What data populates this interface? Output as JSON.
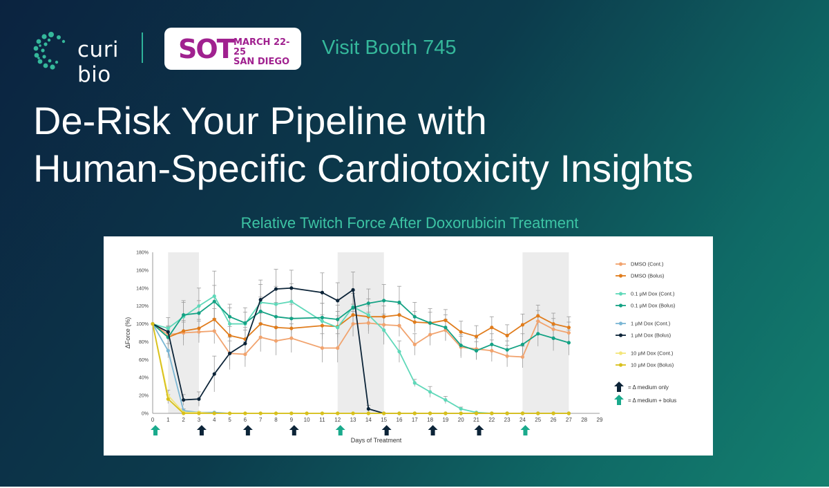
{
  "brand": {
    "logo_text": "curi bio",
    "event_mark": "SOT",
    "event_dates_line1": "MARCH 22-25",
    "event_dates_line2": "SAN DIEGO",
    "booth_text": "Visit Booth 745"
  },
  "headline": {
    "line1": "De-Risk Your Pipeline with",
    "line2": "Human-Specific Cardiotoxicity Insights"
  },
  "colors": {
    "brand_green": "#35b89b",
    "event_magenta": "#a0218f",
    "arrow_dark": "#0c2438",
    "arrow_teal": "#1aaa8c",
    "shade": "#ececec"
  },
  "chart_data": {
    "type": "line",
    "title": "Relative Twitch Force After Doxorubicin Treatment",
    "xlabel": "Days of Treatment",
    "ylabel": "ΔForce (%)",
    "xlim": [
      0,
      29
    ],
    "ylim": [
      0,
      180
    ],
    "x_ticks": [
      0,
      1,
      2,
      3,
      4,
      5,
      6,
      7,
      8,
      9,
      10,
      11,
      12,
      13,
      14,
      15,
      16,
      17,
      18,
      19,
      20,
      21,
      22,
      23,
      24,
      25,
      26,
      27,
      28,
      29
    ],
    "y_ticks": [
      "0%",
      "20%",
      "40%",
      "60%",
      "80%",
      "100%",
      "120%",
      "140%",
      "160%",
      "180%"
    ],
    "grid": false,
    "legend_position": "right",
    "shaded_day_ranges": [
      [
        1,
        3
      ],
      [
        12,
        15
      ],
      [
        24,
        27
      ]
    ],
    "series": [
      {
        "name": "DMSO (Cont.)",
        "color": "#f1a36e",
        "x": [
          0,
          1,
          2,
          3,
          4,
          5,
          6,
          7,
          8,
          9,
          11,
          12,
          13,
          14,
          15,
          16,
          17,
          18,
          19,
          20,
          21,
          22,
          23,
          24,
          25,
          26,
          27
        ],
        "y": [
          100,
          88,
          90,
          91,
          92,
          67,
          66,
          85,
          81,
          84,
          73,
          73,
          100,
          101,
          99,
          98,
          77,
          88,
          93,
          74,
          72,
          70,
          64,
          63,
          103,
          94,
          90
        ],
        "err": [
          0,
          10,
          14,
          12,
          14,
          14,
          14,
          16,
          16,
          16,
          16,
          16,
          14,
          12,
          12,
          12,
          12,
          12,
          12,
          12,
          12,
          12,
          12,
          12,
          12,
          12,
          12
        ]
      },
      {
        "name": "DMSO (Bolus)",
        "color": "#e07c1c",
        "x": [
          0,
          1,
          2,
          3,
          4,
          5,
          6,
          7,
          8,
          9,
          11,
          12,
          13,
          14,
          15,
          16,
          17,
          18,
          19,
          20,
          21,
          22,
          23,
          24,
          25,
          26,
          27
        ],
        "y": [
          100,
          85,
          92,
          95,
          105,
          87,
          83,
          100,
          96,
          95,
          98,
          97,
          110,
          108,
          108,
          110,
          102,
          101,
          104,
          91,
          86,
          96,
          87,
          99,
          109,
          100,
          96
        ],
        "err": [
          0,
          8,
          10,
          10,
          12,
          10,
          10,
          12,
          12,
          12,
          12,
          12,
          12,
          12,
          12,
          12,
          12,
          12,
          12,
          12,
          12,
          12,
          12,
          12,
          12,
          12,
          12
        ]
      },
      {
        "name": "0.1 µM Dox (Cont.)",
        "color": "#5fd8b9",
        "x": [
          0,
          1,
          2,
          3,
          4,
          5,
          6,
          7,
          8,
          9,
          11,
          12,
          13,
          14,
          15,
          16,
          17,
          18,
          19,
          20,
          21,
          22,
          23,
          24
        ],
        "y": [
          100,
          95,
          108,
          120,
          131,
          100,
          100,
          124,
          122,
          125,
          103,
          96,
          119,
          110,
          93,
          69,
          34,
          24,
          15,
          5,
          1,
          0,
          0,
          0
        ],
        "err": [
          0,
          12,
          18,
          20,
          28,
          18,
          18,
          20,
          20,
          20,
          20,
          18,
          18,
          18,
          16,
          12,
          4,
          6,
          4,
          2,
          0,
          0,
          0,
          0
        ]
      },
      {
        "name": "0.1 µM Dox (Bolus)",
        "color": "#14a284",
        "x": [
          0,
          1,
          2,
          3,
          4,
          5,
          6,
          7,
          8,
          9,
          11,
          12,
          13,
          14,
          15,
          16,
          17,
          18,
          19,
          20,
          21,
          22,
          23,
          24,
          25,
          26,
          27
        ],
        "y": [
          100,
          85,
          110,
          112,
          125,
          108,
          101,
          114,
          108,
          106,
          107,
          105,
          118,
          123,
          126,
          124,
          108,
          101,
          96,
          76,
          70,
          77,
          71,
          77,
          89,
          84,
          79
        ],
        "err": [
          0,
          10,
          14,
          14,
          18,
          14,
          12,
          16,
          16,
          16,
          16,
          16,
          16,
          16,
          18,
          18,
          16,
          16,
          14,
          12,
          10,
          12,
          10,
          12,
          14,
          14,
          14
        ]
      },
      {
        "name": "1 µM Dox (Cont.)",
        "color": "#7ab6d4",
        "x": [
          0,
          1,
          2,
          3,
          4,
          5,
          6,
          7,
          8,
          9,
          10,
          11,
          12,
          13,
          14,
          15,
          16,
          17,
          18,
          19,
          20,
          21,
          22,
          23,
          24,
          25,
          26,
          27
        ],
        "y": [
          100,
          70,
          3,
          1,
          1,
          0,
          0,
          0,
          0,
          0,
          0,
          0,
          0,
          0,
          0,
          0,
          0,
          0,
          0,
          0,
          0,
          0,
          0,
          0,
          0,
          0,
          0,
          0
        ],
        "err": [
          0,
          8,
          2,
          1,
          0,
          0,
          0,
          0,
          0,
          0,
          0,
          0,
          0,
          0,
          0,
          0,
          0,
          0,
          0,
          0,
          0,
          0,
          0,
          0,
          0,
          0,
          0,
          0
        ]
      },
      {
        "name": "1 µM Dox (Bolus)",
        "color": "#0c2438",
        "x": [
          0,
          1,
          2,
          3,
          4,
          5,
          6,
          7,
          8,
          9,
          11,
          12,
          13,
          14,
          15,
          16,
          17,
          18,
          19,
          20,
          21,
          22,
          23,
          24,
          25,
          26,
          27
        ],
        "y": [
          100,
          91,
          15,
          16,
          44,
          67,
          78,
          127,
          139,
          140,
          135,
          126,
          138,
          5,
          0,
          0,
          0,
          0,
          0,
          0,
          0,
          0,
          0,
          0,
          0,
          0,
          0
        ],
        "err": [
          0,
          6,
          6,
          8,
          20,
          18,
          18,
          22,
          22,
          20,
          22,
          20,
          20,
          4,
          0,
          0,
          0,
          0,
          0,
          0,
          0,
          0,
          0,
          0,
          0,
          0,
          0
        ]
      },
      {
        "name": "10 µM Dox (Cont.)",
        "color": "#f3e67a",
        "x": [
          0,
          1,
          2,
          3,
          4,
          5,
          6,
          7,
          8,
          9,
          10,
          11,
          12,
          13,
          14,
          15,
          16,
          17,
          18,
          19,
          20,
          21,
          22,
          23,
          24,
          25,
          26,
          27
        ],
        "y": [
          100,
          20,
          1,
          1,
          0,
          0,
          0,
          0,
          0,
          0,
          0,
          0,
          0,
          0,
          0,
          0,
          0,
          0,
          0,
          0,
          0,
          0,
          0,
          0,
          0,
          0,
          0,
          0
        ],
        "err": [
          0,
          6,
          0,
          0,
          0,
          0,
          0,
          0,
          0,
          0,
          0,
          0,
          0,
          0,
          0,
          0,
          0,
          0,
          0,
          0,
          0,
          0,
          0,
          0,
          0,
          0,
          0,
          0
        ]
      },
      {
        "name": "10 µM Dox (Bolus)",
        "color": "#d8c01b",
        "x": [
          0,
          1,
          2,
          3,
          4,
          5,
          6,
          7,
          8,
          9,
          10,
          11,
          12,
          13,
          14,
          15,
          16,
          17,
          18,
          19,
          20,
          21,
          22,
          23,
          24,
          25,
          26,
          27
        ],
        "y": [
          100,
          16,
          0,
          0,
          0,
          0,
          0,
          0,
          0,
          0,
          0,
          0,
          0,
          0,
          0,
          0,
          0,
          0,
          0,
          0,
          0,
          0,
          0,
          0,
          0,
          0,
          0,
          0
        ],
        "err": [
          0,
          5,
          0,
          0,
          0,
          0,
          0,
          0,
          0,
          0,
          0,
          0,
          0,
          0,
          0,
          0,
          0,
          0,
          0,
          0,
          0,
          0,
          0,
          0,
          0,
          0,
          0,
          0
        ]
      }
    ],
    "arrow_markers": [
      {
        "day": 0,
        "kind": "bolus"
      },
      {
        "day": 3,
        "kind": "medium"
      },
      {
        "day": 6,
        "kind": "medium"
      },
      {
        "day": 9,
        "kind": "medium"
      },
      {
        "day": 12,
        "kind": "bolus"
      },
      {
        "day": 15,
        "kind": "medium"
      },
      {
        "day": 18,
        "kind": "medium"
      },
      {
        "day": 21,
        "kind": "medium"
      },
      {
        "day": 24,
        "kind": "bolus"
      }
    ],
    "arrow_legend": [
      {
        "kind": "medium",
        "label": "= Δ medium only"
      },
      {
        "kind": "bolus",
        "label": "= Δ medium + bolus"
      }
    ]
  }
}
